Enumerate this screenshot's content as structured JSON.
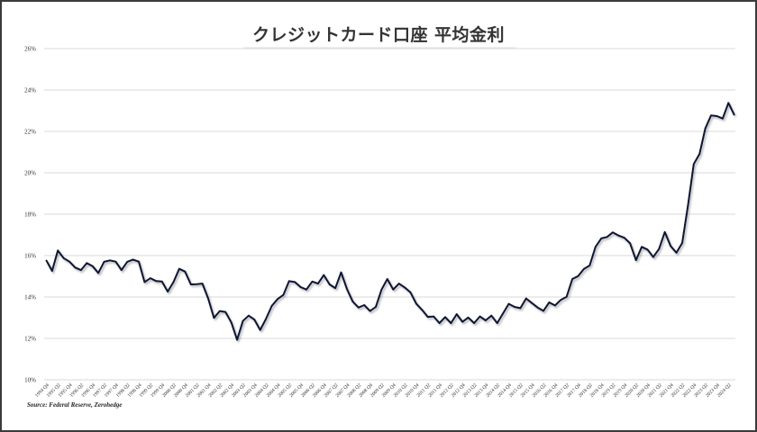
{
  "chart_data": {
    "type": "line",
    "title": "クレジットカード口座 平均金利",
    "xlabel": "",
    "ylabel": "",
    "ylim": [
      10,
      26
    ],
    "y_ticks": [
      "10%",
      "12%",
      "14%",
      "16%",
      "18%",
      "20%",
      "22%",
      "24%",
      "26%"
    ],
    "y_tick_values": [
      10,
      12,
      14,
      16,
      18,
      20,
      22,
      24,
      26
    ],
    "grid": "horizontal",
    "line_color": "#0d1433",
    "x": [
      "1994 Q4",
      "1995 Q1",
      "1995 Q2",
      "1995 Q3",
      "1995 Q4",
      "1996 Q1",
      "1996 Q2",
      "1996 Q3",
      "1996 Q4",
      "1997 Q1",
      "1997 Q2",
      "1997 Q3",
      "1997 Q4",
      "1998 Q1",
      "1998 Q2",
      "1998 Q3",
      "1998 Q4",
      "1999 Q1",
      "1999 Q2",
      "1999 Q3",
      "1999 Q4",
      "2000 Q1",
      "2000 Q2",
      "2000 Q3",
      "2000 Q4",
      "2001 Q1",
      "2001 Q2",
      "2001 Q3",
      "2001 Q4",
      "2002 Q1",
      "2002 Q2",
      "2002 Q3",
      "2002 Q4",
      "2003 Q1",
      "2003 Q2",
      "2003 Q3",
      "2003 Q4",
      "2004 Q1",
      "2004 Q2",
      "2004 Q3",
      "2004 Q4",
      "2005 Q1",
      "2005 Q2",
      "2005 Q3",
      "2005 Q4",
      "2006 Q1",
      "2006 Q2",
      "2006 Q3",
      "2006 Q4",
      "2007 Q1",
      "2007 Q2",
      "2007 Q3",
      "2007 Q4",
      "2008 Q1",
      "2008 Q2",
      "2008 Q3",
      "2008 Q4",
      "2009 Q1",
      "2009 Q2",
      "2009 Q3",
      "2009 Q4",
      "2010 Q1",
      "2010 Q2",
      "2010 Q3",
      "2010 Q4",
      "2011 Q1",
      "2011 Q2",
      "2011 Q3",
      "2011 Q4",
      "2012 Q1",
      "2012 Q2",
      "2012 Q3",
      "2012 Q4",
      "2013 Q1",
      "2013 Q2",
      "2013 Q3",
      "2013 Q4",
      "2014 Q1",
      "2014 Q2",
      "2014 Q3",
      "2014 Q4",
      "2015 Q1",
      "2015 Q2",
      "2015 Q3",
      "2015 Q4",
      "2016 Q1",
      "2016 Q2",
      "2016 Q3",
      "2016 Q4",
      "2017 Q1",
      "2017 Q2",
      "2017 Q3",
      "2017 Q4",
      "2018 Q1",
      "2018 Q2",
      "2018 Q3",
      "2018 Q4",
      "2019 Q1",
      "2019 Q2",
      "2019 Q3",
      "2019 Q4",
      "2020 Q1",
      "2020 Q2",
      "2020 Q3",
      "2020 Q4",
      "2021 Q1",
      "2021 Q2",
      "2021 Q3",
      "2021 Q4",
      "2022 Q1",
      "2022 Q2",
      "2022 Q3",
      "2022 Q4",
      "2023 Q1",
      "2023 Q2",
      "2023 Q3",
      "2023 Q4",
      "2024 Q1",
      "2024 Q2",
      "2024 Q3"
    ],
    "values": [
      15.77,
      15.26,
      16.25,
      15.88,
      15.71,
      15.42,
      15.3,
      15.64,
      15.49,
      15.16,
      15.7,
      15.77,
      15.71,
      15.3,
      15.7,
      15.81,
      15.71,
      14.72,
      14.91,
      14.77,
      14.75,
      14.26,
      14.72,
      15.36,
      15.23,
      14.61,
      14.62,
      14.65,
      13.93,
      12.99,
      13.32,
      13.28,
      12.77,
      11.93,
      12.84,
      13.1,
      12.91,
      12.41,
      12.94,
      13.57,
      13.9,
      14.1,
      14.77,
      14.72,
      14.48,
      14.36,
      14.75,
      14.65,
      15.06,
      14.61,
      14.43,
      15.19,
      14.39,
      13.78,
      13.49,
      13.61,
      13.32,
      13.52,
      14.36,
      14.87,
      14.36,
      14.65,
      14.46,
      14.22,
      13.68,
      13.38,
      13.04,
      13.06,
      12.74,
      13.03,
      12.74,
      13.17,
      12.8,
      13.01,
      12.74,
      13.06,
      12.87,
      13.1,
      12.74,
      13.2,
      13.67,
      13.52,
      13.46,
      13.93,
      13.71,
      13.49,
      13.33,
      13.74,
      13.59,
      13.86,
      14.01,
      14.87,
      15.01,
      15.35,
      15.52,
      16.42,
      16.83,
      16.9,
      17.12,
      16.97,
      16.86,
      16.59,
      15.78,
      16.42,
      16.29,
      15.93,
      16.32,
      17.14,
      16.46,
      16.14,
      16.61,
      18.42,
      20.42,
      20.91,
      22.14,
      22.77,
      22.74,
      22.62,
      23.38,
      22.8
    ],
    "x_tick_labels": [
      "1994 Q4",
      "1995 Q2",
      "1995 Q4",
      "1996 Q2",
      "1996 Q4",
      "1997 Q2",
      "1997 Q4",
      "1998 Q2",
      "1998 Q4",
      "1999 Q2",
      "1999 Q4",
      "2000 Q2",
      "2000 Q4",
      "2001 Q2",
      "2001 Q4",
      "2002 Q2",
      "2002 Q4",
      "2003 Q2",
      "2003 Q4",
      "2004 Q2",
      "2004 Q4",
      "2005 Q2",
      "2005 Q4",
      "2006 Q2",
      "2006 Q4",
      "2007 Q2",
      "2007 Q4",
      "2008 Q2",
      "2008 Q4",
      "2009 Q2",
      "2009 Q4",
      "2010 Q2",
      "2010 Q4",
      "2011 Q2",
      "2011 Q4",
      "2012 Q2",
      "2012 Q4",
      "2013 Q2",
      "2013 Q4",
      "2014 Q2",
      "2014 Q4",
      "2015 Q2",
      "2015 Q4",
      "2016 Q2",
      "2016 Q4",
      "2017 Q2",
      "2017 Q4",
      "2018 Q2",
      "2018 Q4",
      "2019 Q2",
      "2019 Q4",
      "2020 Q2",
      "2020 Q4",
      "2021 Q2",
      "2021 Q4",
      "2022 Q2",
      "2022 Q4",
      "2023 Q2",
      "2023 Q4",
      "2024 Q2"
    ],
    "source": "Source: Federal Reserve, Zerohedge"
  }
}
